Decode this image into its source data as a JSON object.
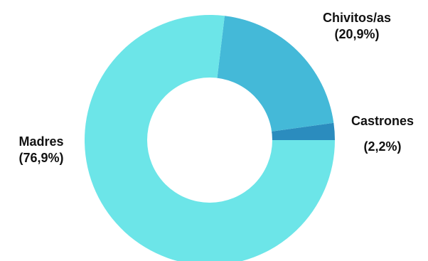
{
  "chart_data": {
    "type": "pie",
    "donut": true,
    "slices": [
      {
        "label": "Chivitos/as",
        "value": 20.9,
        "percent_label": "(20,9%)",
        "color": "#44b9d8"
      },
      {
        "label": "Castrones",
        "value": 2.2,
        "percent_label": "(2,2%)",
        "color": "#2b8cbe"
      },
      {
        "label": "Madres",
        "value": 76.9,
        "percent_label": "(76,9%)",
        "color": "#6ce5e8"
      }
    ],
    "start_angle_deg": 0,
    "direction": "clockwise",
    "legend": "none"
  }
}
